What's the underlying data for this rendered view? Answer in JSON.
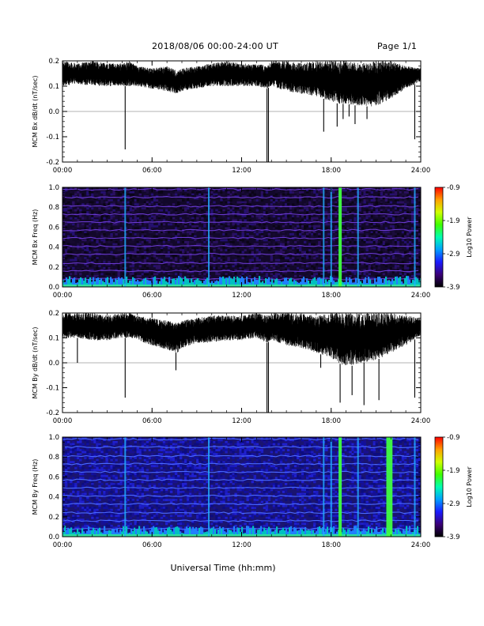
{
  "header": {
    "title": "2018/08/06  00:00-24:00 UT",
    "page": "Page 1/1"
  },
  "footer": {
    "xlabel": "Universal Time (hh:mm)"
  },
  "colorbar": {
    "label": "Log10 Power",
    "ticks": [
      "-0.9",
      "-1.9",
      "-2.9",
      "-3.9"
    ],
    "colors": [
      "#000000",
      "#3a0078",
      "#1a1aff",
      "#00a0ff",
      "#00ffb0",
      "#40ff00",
      "#d0ff00",
      "#ffa000",
      "#ff0000"
    ]
  },
  "chart_data": [
    {
      "id": "bx-dbdt",
      "type": "line",
      "ylabel": "MCM Bx dB/dt (nT/sec)",
      "ylim": [
        -0.2,
        0.2
      ],
      "yticks": [
        "0.2",
        "0.1",
        "0.0",
        "-0.1",
        "-0.2"
      ],
      "xlim": [
        "00:00",
        "24:00"
      ],
      "xticks": [
        "00:00",
        "06:00",
        "12:00",
        "18:00",
        "24:00"
      ],
      "series": [
        {
          "x_hours": [
            0,
            1,
            2,
            3,
            4,
            4.5,
            5,
            6,
            7,
            7.7,
            8,
            9,
            10,
            11,
            12,
            13,
            13.7,
            14,
            15,
            16,
            17,
            18,
            18.5,
            19,
            20,
            21,
            22,
            23,
            24
          ],
          "y_upper": [
            0.2,
            0.19,
            0.2,
            0.19,
            0.19,
            0.2,
            0.18,
            0.17,
            0.18,
            0.16,
            0.17,
            0.18,
            0.19,
            0.2,
            0.19,
            0.19,
            0.18,
            0.2,
            0.2,
            0.19,
            0.2,
            0.2,
            0.2,
            0.2,
            0.19,
            0.2,
            0.2,
            0.18,
            0.17
          ],
          "y_lower": [
            0.1,
            0.11,
            0.1,
            0.1,
            0.1,
            0.1,
            0.1,
            0.09,
            0.08,
            0.07,
            0.08,
            0.09,
            0.1,
            0.1,
            0.1,
            0.1,
            0.09,
            0.1,
            0.08,
            0.07,
            0.06,
            0.04,
            0.03,
            0.03,
            0.02,
            0.02,
            0.05,
            0.09,
            0.12
          ],
          "spikes": [
            [
              4.2,
              -0.15
            ],
            [
              13.7,
              -0.2
            ],
            [
              13.8,
              -0.2
            ],
            [
              17.5,
              -0.08
            ],
            [
              18.4,
              -0.06
            ],
            [
              18.8,
              -0.03
            ],
            [
              19.2,
              -0.02
            ],
            [
              19.6,
              -0.05
            ],
            [
              20.4,
              -0.03
            ],
            [
              23.6,
              -0.11
            ]
          ]
        }
      ]
    },
    {
      "id": "bx-spec",
      "type": "heatmap",
      "ylabel": "MCM Bx Freq (Hz)",
      "ylim": [
        0.0,
        1.0
      ],
      "yticks": [
        "1.0",
        "0.8",
        "0.6",
        "0.4",
        "0.2",
        "0.0"
      ],
      "xlim": [
        "00:00",
        "24:00"
      ],
      "xticks": [
        "00:00",
        "06:00",
        "12:00",
        "18:00",
        "24:00"
      ],
      "zlim": [
        -3.9,
        -0.9
      ],
      "harmonics_hz": [
        0.08,
        0.16,
        0.24,
        0.33,
        0.41,
        0.49,
        0.57,
        0.65,
        0.73,
        0.81,
        0.9,
        0.98
      ],
      "bright_columns_hours": [
        4.2,
        9.8,
        17.5,
        18.0,
        18.6,
        19.8,
        23.6
      ]
    },
    {
      "id": "by-dbdt",
      "type": "line",
      "ylabel": "MCM By dB/dt (nT/sec)",
      "ylim": [
        -0.2,
        0.2
      ],
      "yticks": [
        "0.2",
        "0.1",
        "0.0",
        "-0.1",
        "-0.2"
      ],
      "xlim": [
        "00:00",
        "24:00"
      ],
      "xticks": [
        "00:00",
        "06:00",
        "12:00",
        "18:00",
        "24:00"
      ],
      "series": [
        {
          "x_hours": [
            0,
            1,
            2,
            3,
            4,
            4.5,
            5,
            6,
            7,
            7.7,
            8,
            9,
            10,
            11,
            12,
            13,
            13.7,
            14,
            15,
            16,
            17,
            18,
            18.5,
            19,
            20,
            21,
            22,
            23,
            24
          ],
          "y_upper": [
            0.2,
            0.2,
            0.2,
            0.19,
            0.2,
            0.2,
            0.19,
            0.18,
            0.17,
            0.16,
            0.17,
            0.18,
            0.19,
            0.19,
            0.19,
            0.2,
            0.19,
            0.2,
            0.2,
            0.2,
            0.19,
            0.2,
            0.2,
            0.2,
            0.2,
            0.2,
            0.2,
            0.19,
            0.18
          ],
          "y_lower": [
            0.1,
            0.1,
            0.09,
            0.09,
            0.1,
            0.1,
            0.09,
            0.07,
            0.05,
            0.04,
            0.06,
            0.08,
            0.08,
            0.09,
            0.09,
            0.1,
            0.08,
            0.09,
            0.07,
            0.06,
            0.04,
            0.02,
            0.0,
            -0.02,
            0.0,
            0.01,
            0.04,
            0.07,
            0.11
          ],
          "spikes": [
            [
              1.0,
              0.0
            ],
            [
              4.2,
              -0.14
            ],
            [
              7.6,
              -0.03
            ],
            [
              13.7,
              -0.2
            ],
            [
              13.8,
              -0.2
            ],
            [
              17.3,
              -0.02
            ],
            [
              18.6,
              -0.16
            ],
            [
              19.4,
              -0.13
            ],
            [
              20.2,
              -0.17
            ],
            [
              21.2,
              -0.15
            ],
            [
              23.6,
              -0.14
            ]
          ]
        }
      ]
    },
    {
      "id": "by-spec",
      "type": "heatmap",
      "ylabel": "MCM By Freq (Hz)",
      "ylim": [
        0.0,
        1.0
      ],
      "yticks": [
        "1.0",
        "0.8",
        "0.6",
        "0.4",
        "0.2",
        "0.0"
      ],
      "xlim": [
        "00:00",
        "24:00"
      ],
      "xticks": [
        "00:00",
        "06:00",
        "12:00",
        "18:00",
        "24:00"
      ],
      "zlim": [
        -3.9,
        -0.9
      ],
      "harmonics_hz": [
        0.08,
        0.16,
        0.24,
        0.33,
        0.41,
        0.49,
        0.57,
        0.65,
        0.73,
        0.81,
        0.9,
        0.98
      ],
      "bright_columns_hours": [
        4.2,
        9.8,
        17.5,
        18.0,
        18.6,
        19.8,
        21.8,
        22.0,
        23.6
      ]
    }
  ]
}
